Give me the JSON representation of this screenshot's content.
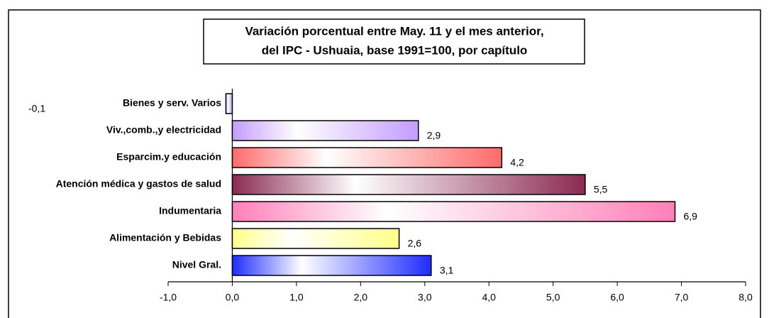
{
  "chart_data": {
    "type": "bar",
    "orientation": "horizontal",
    "title": [
      "Variación porcentual entre May. 11 y el mes anterior,",
      "del IPC - Ushuaia, base 1991=100, por capítulo"
    ],
    "categories": [
      "Bienes y serv. Varios",
      "Viv.,comb.,y electricidad",
      "Esparcim.y educación",
      "Atención médica y gastos de salud",
      "Indumentaria",
      "Alimentación y Bebidas",
      "Nivel Gral."
    ],
    "values": [
      -0.1,
      2.9,
      4.2,
      5.5,
      6.9,
      2.6,
      3.1
    ],
    "value_labels": [
      "-0,1",
      "2,9",
      "4,2",
      "5,5",
      "6,9",
      "2,6",
      "3,1"
    ],
    "colors": [
      "#a8a8ff",
      "#c49cff",
      "#ff6a6a",
      "#8a2a52",
      "#ff80b8",
      "#ffff88",
      "#1e2cff"
    ],
    "xlim": [
      -1,
      8
    ],
    "xticks": [
      {
        "value": -1,
        "label": "-1,0"
      },
      {
        "value": 0,
        "label": "0,0"
      },
      {
        "value": 1,
        "label": "1,0"
      },
      {
        "value": 2,
        "label": "2,0"
      },
      {
        "value": 3,
        "label": "3,0"
      },
      {
        "value": 4,
        "label": "4,0"
      },
      {
        "value": 5,
        "label": "5,0"
      },
      {
        "value": 6,
        "label": "6,0"
      },
      {
        "value": 7,
        "label": "7,0"
      },
      {
        "value": 8,
        "label": "8,0"
      }
    ]
  }
}
